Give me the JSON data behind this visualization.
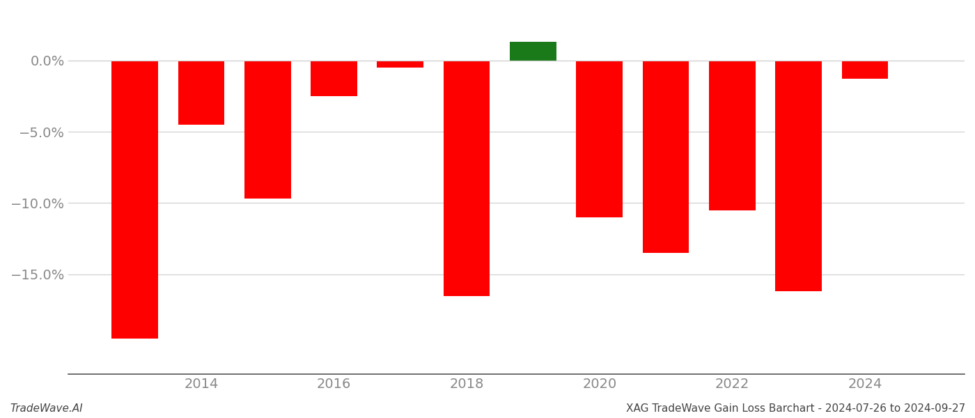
{
  "years": [
    2013,
    2014,
    2015,
    2016,
    2017,
    2018,
    2019,
    2020,
    2021,
    2022,
    2023,
    2024
  ],
  "values": [
    -19.5,
    -4.5,
    -9.7,
    -2.5,
    -0.5,
    -16.5,
    1.3,
    -11.0,
    -13.5,
    -10.5,
    -16.2,
    -1.3
  ],
  "colors": [
    "#ff0000",
    "#ff0000",
    "#ff0000",
    "#ff0000",
    "#ff0000",
    "#ff0000",
    "#1a7a1a",
    "#ff0000",
    "#ff0000",
    "#ff0000",
    "#ff0000",
    "#ff0000"
  ],
  "bar_width": 0.7,
  "xlim": [
    2012.0,
    2025.5
  ],
  "ylim": [
    -22,
    3.5
  ],
  "yticks": [
    0.0,
    -5.0,
    -10.0,
    -15.0
  ],
  "xticks": [
    2014,
    2016,
    2018,
    2020,
    2022,
    2024
  ],
  "xlabel": "",
  "ylabel": "",
  "title": "",
  "footer_left": "TradeWave.AI",
  "footer_right": "XAG TradeWave Gain Loss Barchart - 2024-07-26 to 2024-09-27",
  "grid_color": "#cccccc",
  "background_color": "#ffffff",
  "tick_label_color": "#888888",
  "footer_fontsize": 11,
  "tick_fontsize": 14
}
